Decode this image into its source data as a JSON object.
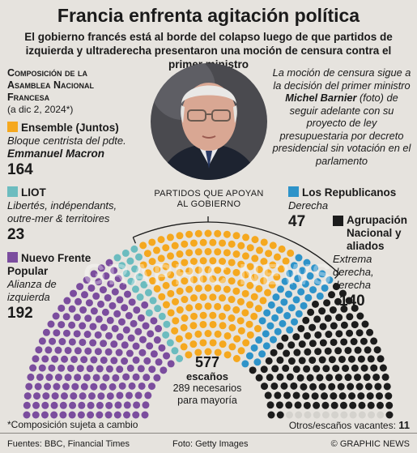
{
  "title": "Francia enfrenta agitación política",
  "subtitle": "El gobierno francés está al borde del colapso luego de que partidos de izquierda y ultraderecha presentaron una moción de censura contra el primer ministro",
  "composition_heading_1": "Composición de la",
  "composition_heading_2": "Asamblea Nacional",
  "composition_heading_3": "Francesa",
  "composition_date": "(a dic 2, 2024*)",
  "quote": {
    "part1": "La moción de censura sigue a la decisión del primer ministro ",
    "name": "Michel Barnier",
    "part2": " (foto) de seguir adelante con su proyecto de ley presupuestaria por decreto presidencial sin votación en el parlamento"
  },
  "support_label_1": "PARTIDOS QUE APOYAN",
  "support_label_2": "AL GOBIERNO",
  "total_seats": "577",
  "total_label": "escaños",
  "majority_1": "289 necesarios",
  "majority_2": "para mayoría",
  "footnote": "*Composición sujeta a cambio",
  "vacant_label": "Otros/escaños vacantes: ",
  "vacant_value": "11",
  "footer": {
    "sources": "Fuentes: BBC, Financial Times",
    "photo": "Foto: Getty Images",
    "credit": "© GRAPHIC NEWS"
  },
  "watermark": "GRAPHIC NEWS",
  "colors": {
    "nfp": "#7b4d9e",
    "liot": "#6cbcbf",
    "ensemble": "#f5a81f",
    "lr": "#2e93c9",
    "rn": "#1c1c1c",
    "vacant": "#d4d2cd"
  },
  "chart_data": {
    "type": "hemicycle",
    "total": 577,
    "majority": 289,
    "series": [
      {
        "key": "nfp",
        "name": "Nuevo Frente Popular",
        "description": "Alianza de izquierda",
        "seats": 192
      },
      {
        "key": "liot",
        "name": "LIOT",
        "description": "Libertés, indépendants, outre-mer & territoires",
        "seats": 23
      },
      {
        "key": "ensemble",
        "name": "Ensemble (Juntos)",
        "description": "Bloque centrista del pdte.",
        "leader": "Emmanuel Macron",
        "seats": 164
      },
      {
        "key": "lr",
        "name": "Los Republicanos",
        "description": "Derecha",
        "seats": 47
      },
      {
        "key": "rn",
        "name": "Agrupación Nacional y aliados",
        "description": "Extrema derecha, derecha",
        "seats": 140
      },
      {
        "key": "vacant",
        "name": "Otros/escaños vacantes",
        "seats": 11
      }
    ],
    "government_support": [
      "ensemble",
      "lr"
    ]
  }
}
